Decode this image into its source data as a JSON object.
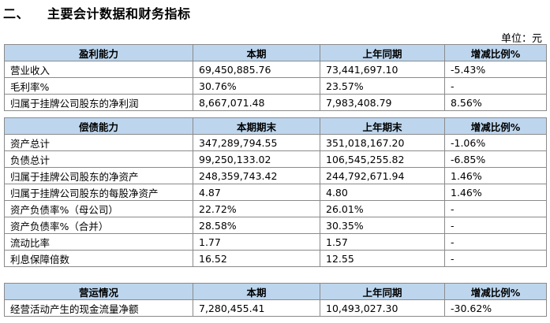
{
  "section_number": "二、",
  "section_title": "主要会计数据和财务指标",
  "unit_label": "单位：元",
  "profit_table": {
    "headers": [
      "盈利能力",
      "本期",
      "上年同期",
      "增减比例%"
    ],
    "rows": [
      [
        "营业收入",
        "69,450,885.76",
        "73,441,697.10",
        "-5.43%"
      ],
      [
        "毛利率%",
        "30.76%",
        "23.57%",
        "-"
      ],
      [
        "归属于挂牌公司股东的净利润",
        "8,667,071.48",
        "7,983,408.79",
        "8.56%"
      ]
    ]
  },
  "solvency_table": {
    "headers": [
      "偿债能力",
      "本期期末",
      "上年期末",
      "增减比例%"
    ],
    "rows": [
      [
        "资产总计",
        "347,289,794.55",
        "351,018,167.20",
        "-1.06%"
      ],
      [
        "负债总计",
        "99,250,133.02",
        "106,545,255.82",
        "-6.85%"
      ],
      [
        "归属于挂牌公司股东的净资产",
        "248,359,743.42",
        "244,792,671.94",
        "1.46%"
      ],
      [
        "归属于挂牌公司股东的每股净资产",
        "4.87",
        "4.80",
        "1.46%"
      ],
      [
        "资产负债率%（母公司）",
        "22.72%",
        "26.01%",
        "-"
      ],
      [
        "资产负债率%（合并）",
        "28.58%",
        "30.35%",
        "-"
      ],
      [
        "流动比率",
        "1.77",
        "1.57",
        "-"
      ],
      [
        "利息保障倍数",
        "16.52",
        "12.55",
        "-"
      ]
    ]
  },
  "operations_table": {
    "headers": [
      "营运情况",
      "本期",
      "上年同期",
      "增减比例%"
    ],
    "rows": [
      [
        "经营活动产生的现金流量净额",
        "7,280,455.41",
        "10,493,027.30",
        "-30.62%"
      ]
    ]
  }
}
